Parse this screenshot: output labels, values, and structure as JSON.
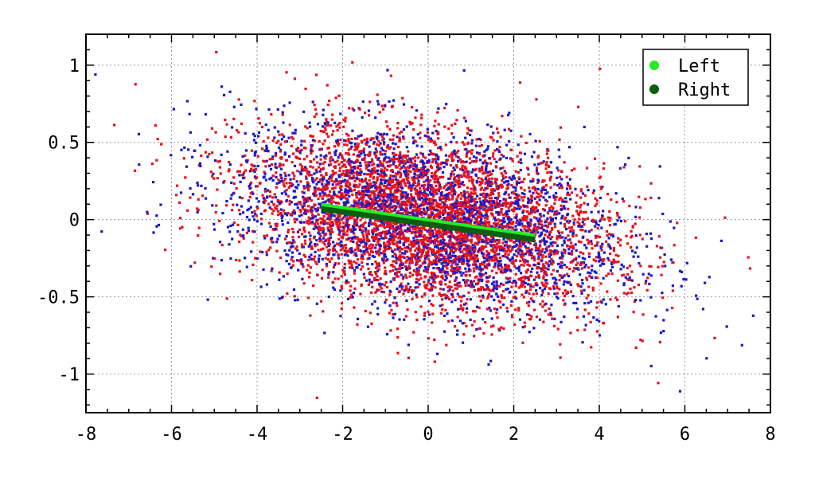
{
  "chart_data": {
    "type": "scatter",
    "title": "",
    "xlabel": "",
    "ylabel": "",
    "xlim": [
      -8,
      8
    ],
    "ylim": [
      -1.25,
      1.2
    ],
    "xticks": [
      -8,
      -6,
      -4,
      -2,
      0,
      2,
      4,
      6,
      8
    ],
    "yticks": [
      -1,
      -0.5,
      0,
      0.5,
      1
    ],
    "xtick_labels": [
      "-8",
      "-6",
      "-4",
      "-2",
      "0",
      "2",
      "4",
      "6",
      "8"
    ],
    "ytick_labels": [
      "-1",
      "-0.5",
      "0",
      "0.5",
      "1"
    ],
    "grid": true,
    "legend": {
      "placement": "top-right",
      "entries": [
        {
          "label": "Left",
          "color": "#22ee22"
        },
        {
          "label": "Right",
          "color": "#0b5e0b"
        }
      ]
    },
    "point_clouds": [
      {
        "color": "#e8121a",
        "count": 4200,
        "x_center": 0.0,
        "x_sd": 2.1,
        "slope": -0.045,
        "y_sd": 0.27
      },
      {
        "color": "#1a1acc",
        "count": 2600,
        "x_center": 0.0,
        "x_sd": 2.3,
        "slope": -0.045,
        "y_sd": 0.28
      }
    ],
    "series": [
      {
        "name": "Left",
        "color": "#22ee22",
        "x": [
          -2.5,
          2.5
        ],
        "y": [
          0.09,
          -0.11
        ]
      },
      {
        "name": "Right",
        "color": "#0b5e0b",
        "x": [
          -2.5,
          2.5
        ],
        "y": [
          0.07,
          -0.13
        ]
      }
    ]
  }
}
